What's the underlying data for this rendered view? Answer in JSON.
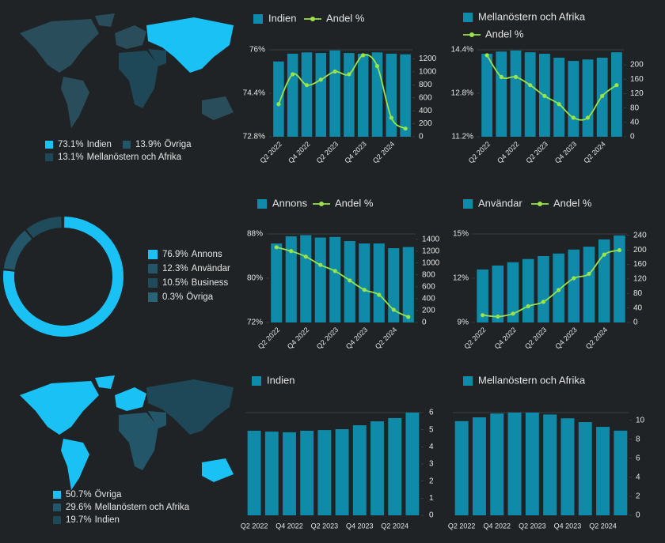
{
  "maps": [
    {
      "categories": [
        "Indien",
        "Övriga",
        "Mellanöstern och Afrika"
      ],
      "value_labels": [
        "73.1%",
        "13.9%",
        "13.1%"
      ],
      "colors": [
        "#19c1f5",
        "#24566a",
        "#1e4757"
      ]
    },
    {
      "categories": [
        "Övriga",
        "Mellanöstern och Afrika",
        "Indien"
      ],
      "value_labels": [
        "50.7%",
        "29.6%",
        "19.7%"
      ],
      "colors": [
        "#19c1f5",
        "#24566a",
        "#1e4757"
      ]
    }
  ],
  "chart_data": [
    {
      "type": "combo",
      "categories": [
        "Q2 2022",
        null,
        "Q4 2022",
        null,
        "Q2 2023",
        null,
        "Q4 2023",
        null,
        "Q2 2024",
        null
      ],
      "series": [
        {
          "name": "Indien",
          "type": "bar",
          "axis": "y2",
          "color": "#0f8aa8",
          "values": [
            1160,
            1280,
            1300,
            1290,
            1330,
            1290,
            1280,
            1300,
            1280,
            1270
          ]
        },
        {
          "name": "Andel %",
          "type": "line",
          "color": "#9be34a",
          "values": [
            74.0,
            75.1,
            74.7,
            74.9,
            75.2,
            75.1,
            75.8,
            75.4,
            73.5,
            73.1
          ]
        }
      ],
      "ylim": [
        72.8,
        76
      ],
      "yticks": [
        {
          "value": 72.8,
          "label": "72.8%"
        },
        {
          "value": 74.4,
          "label": "74.4%"
        },
        {
          "value": 76,
          "label": "76%"
        }
      ],
      "y2lim": [
        0,
        1340
      ],
      "y2ticks": [
        0,
        200,
        400,
        600,
        800,
        1000,
        1200
      ]
    },
    {
      "type": "combo",
      "categories": [
        "Q2 2022",
        null,
        "Q4 2022",
        null,
        "Q2 2023",
        null,
        "Q4 2023",
        null,
        "Q2 2024",
        null
      ],
      "series": [
        {
          "name": "Mellanöstern och Afrika",
          "type": "bar",
          "axis": "y2",
          "color": "#0f8aa8",
          "values": [
            231,
            237,
            240,
            235,
            231,
            220,
            211,
            215,
            220,
            235
          ]
        },
        {
          "name": "Andel %",
          "type": "line",
          "color": "#9be34a",
          "values": [
            14.2,
            13.4,
            13.4,
            13.1,
            12.7,
            12.4,
            11.9,
            11.9,
            12.7,
            13.1
          ]
        }
      ],
      "ylim": [
        11.2,
        14.4
      ],
      "yticks": [
        {
          "value": 11.2,
          "label": "11.2%"
        },
        {
          "value": 12.8,
          "label": "12.8%"
        },
        {
          "value": 14.4,
          "label": "14.4%"
        }
      ],
      "y2lim": [
        0,
        242
      ],
      "y2ticks": [
        0,
        40,
        80,
        120,
        160,
        200
      ]
    },
    {
      "type": "combo",
      "categories": [
        "Q2 2022",
        null,
        "Q4 2022",
        null,
        "Q2 2023",
        null,
        "Q4 2023",
        null,
        "Q2 2024",
        null
      ],
      "series": [
        {
          "name": "Annons",
          "type": "bar",
          "axis": "y2",
          "color": "#0f8aa8",
          "values": [
            1330,
            1450,
            1470,
            1430,
            1440,
            1370,
            1330,
            1330,
            1250,
            1270
          ]
        },
        {
          "name": "Andel %",
          "type": "line",
          "color": "#9be34a",
          "values": [
            85.6,
            84.9,
            83.9,
            82.4,
            81.3,
            79.6,
            77.9,
            77.0,
            74.3,
            73.0
          ]
        }
      ],
      "ylim": [
        72,
        88
      ],
      "yticks": [
        {
          "value": 72,
          "label": "72%"
        },
        {
          "value": 80,
          "label": "80%"
        },
        {
          "value": 88,
          "label": "88%"
        }
      ],
      "y2lim": [
        0,
        1490
      ],
      "y2ticks": [
        0,
        200,
        400,
        600,
        800,
        1000,
        1200,
        1400
      ]
    },
    {
      "type": "combo",
      "categories": [
        "Q2 2022",
        null,
        "Q4 2022",
        null,
        "Q2 2023",
        null,
        "Q4 2023",
        null,
        "Q2 2024",
        null
      ],
      "series": [
        {
          "name": "Användar",
          "type": "bar",
          "axis": "y2",
          "color": "#0f8aa8",
          "values": [
            146,
            157,
            166,
            175,
            183,
            190,
            201,
            209,
            229,
            240
          ]
        },
        {
          "name": "Andel %",
          "type": "line",
          "color": "#9be34a",
          "values": [
            9.5,
            9.4,
            9.6,
            10.1,
            10.4,
            11.2,
            12.0,
            12.3,
            13.6,
            13.9
          ]
        }
      ],
      "ylim": [
        9,
        15
      ],
      "yticks": [
        {
          "value": 9,
          "label": "9%"
        },
        {
          "value": 12,
          "label": "12%"
        },
        {
          "value": 15,
          "label": "15%"
        }
      ],
      "y2lim": [
        0,
        244
      ],
      "y2ticks": [
        0,
        40,
        80,
        120,
        160,
        200,
        240
      ]
    },
    {
      "type": "bar",
      "categories": [
        "Q2 2022",
        null,
        "Q4 2022",
        null,
        "Q2 2023",
        null,
        "Q4 2023",
        null,
        "Q2 2024",
        null
      ],
      "series": [
        {
          "name": "Indien",
          "type": "bar",
          "axis": "y2",
          "color": "#0f8aa8",
          "values": [
            4.94,
            4.89,
            4.85,
            4.94,
            4.98,
            5.03,
            5.26,
            5.49,
            5.68,
            6.0
          ]
        }
      ],
      "y2lim": [
        0,
        6
      ],
      "y2ticks": [
        0,
        1,
        2,
        3,
        4,
        5,
        6
      ]
    },
    {
      "type": "bar",
      "categories": [
        "Q2 2022",
        null,
        "Q4 2022",
        null,
        "Q2 2023",
        null,
        "Q4 2023",
        null,
        "Q2 2024",
        null
      ],
      "series": [
        {
          "name": "Mellanöstern och Afrika",
          "type": "bar",
          "axis": "y2",
          "color": "#0f8aa8",
          "values": [
            9.9,
            10.3,
            10.7,
            10.8,
            10.8,
            10.6,
            10.2,
            9.8,
            9.3,
            8.9
          ]
        }
      ],
      "y2lim": [
        0,
        10.8
      ],
      "y2ticks": [
        0,
        2,
        4,
        6,
        8,
        10
      ]
    },
    {
      "type": "donut",
      "categories": [
        "Annons",
        "Användar",
        "Business",
        "Övriga"
      ],
      "values": [
        76.9,
        12.3,
        10.5,
        0.3
      ],
      "value_labels": [
        "76.9%",
        "12.3%",
        "10.5%",
        "0.3%"
      ],
      "colors": [
        "#19c1f5",
        "#24566a",
        "#1f4b5a",
        "#2b6275"
      ]
    }
  ]
}
